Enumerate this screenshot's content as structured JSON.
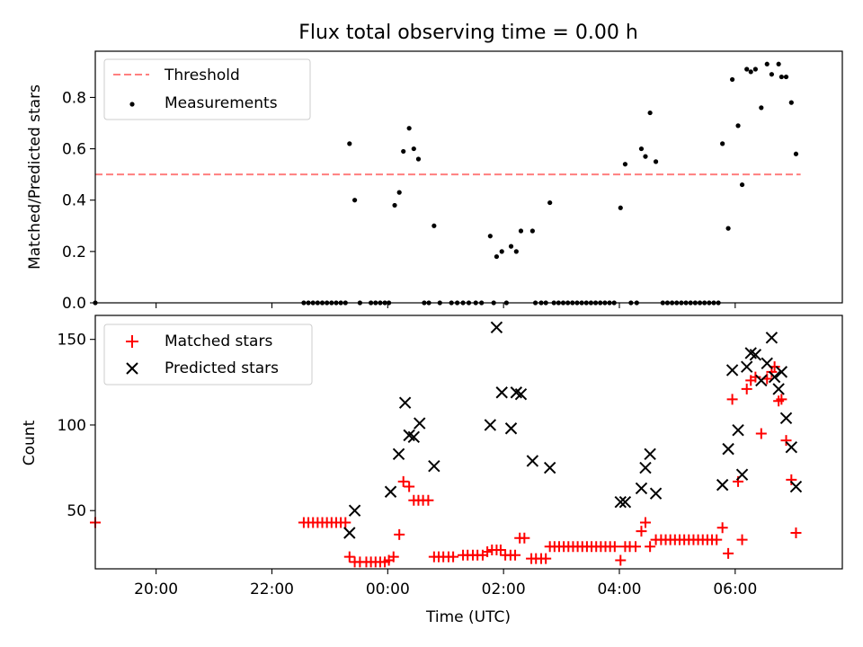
{
  "chart_data": [
    {
      "type": "scatter",
      "title": "Flux total observing time = 0.00 h",
      "xlabel": "",
      "ylabel": "Matched/Predicted stars",
      "xlim": [
        -5.05,
        7.85
      ],
      "ylim": [
        0,
        0.98
      ],
      "x_unit": "hours relative to 00:00 UTC",
      "x_ticks": [
        -4,
        -2,
        0,
        2,
        4,
        6
      ],
      "y_ticks": [
        0.0,
        0.2,
        0.4,
        0.6,
        0.8
      ],
      "y_tick_labels": [
        "0.0",
        "0.2",
        "0.4",
        "0.6",
        "0.8"
      ],
      "legend_position": "top-left",
      "legend": [
        "Threshold",
        "Measurements"
      ],
      "threshold": {
        "name": "Threshold",
        "value": 0.5,
        "x_range": [
          -5.05,
          7.13
        ],
        "color": "#ff7f7f",
        "style": "dashed"
      },
      "series": [
        {
          "name": "Measurements",
          "color": "#000000",
          "marker": "dot",
          "points": [
            [
              -5.05,
              0.0
            ],
            [
              -1.45,
              0.0
            ],
            [
              -1.37,
              0.0
            ],
            [
              -1.29,
              0.0
            ],
            [
              -1.21,
              0.0
            ],
            [
              -1.13,
              0.0
            ],
            [
              -1.05,
              0.0
            ],
            [
              -0.97,
              0.0
            ],
            [
              -0.89,
              0.0
            ],
            [
              -0.81,
              0.0
            ],
            [
              -0.73,
              0.0
            ],
            [
              -0.66,
              0.62
            ],
            [
              -0.57,
              0.4
            ],
            [
              -0.48,
              0.0
            ],
            [
              -0.29,
              0.0
            ],
            [
              -0.21,
              0.0
            ],
            [
              -0.13,
              0.0
            ],
            [
              -0.05,
              0.0
            ],
            [
              0.02,
              0.0
            ],
            [
              0.12,
              0.38
            ],
            [
              0.2,
              0.43
            ],
            [
              0.27,
              0.59
            ],
            [
              0.37,
              0.68
            ],
            [
              0.45,
              0.6
            ],
            [
              0.53,
              0.56
            ],
            [
              0.63,
              0.0
            ],
            [
              0.71,
              0.0
            ],
            [
              0.8,
              0.3
            ],
            [
              0.9,
              0.0
            ],
            [
              1.1,
              0.0
            ],
            [
              1.2,
              0.0
            ],
            [
              1.3,
              0.0
            ],
            [
              1.4,
              0.0
            ],
            [
              1.52,
              0.0
            ],
            [
              1.62,
              0.0
            ],
            [
              1.77,
              0.26
            ],
            [
              1.83,
              0.0
            ],
            [
              1.88,
              0.18
            ],
            [
              1.97,
              0.2
            ],
            [
              2.05,
              0.0
            ],
            [
              2.13,
              0.22
            ],
            [
              2.22,
              0.2
            ],
            [
              2.3,
              0.28
            ],
            [
              2.5,
              0.28
            ],
            [
              2.55,
              0.0
            ],
            [
              2.65,
              0.0
            ],
            [
              2.73,
              0.0
            ],
            [
              2.8,
              0.39
            ],
            [
              2.87,
              0.0
            ],
            [
              2.95,
              0.0
            ],
            [
              3.03,
              0.0
            ],
            [
              3.11,
              0.0
            ],
            [
              3.19,
              0.0
            ],
            [
              3.27,
              0.0
            ],
            [
              3.35,
              0.0
            ],
            [
              3.43,
              0.0
            ],
            [
              3.51,
              0.0
            ],
            [
              3.59,
              0.0
            ],
            [
              3.67,
              0.0
            ],
            [
              3.75,
              0.0
            ],
            [
              3.83,
              0.0
            ],
            [
              3.91,
              0.0
            ],
            [
              4.02,
              0.37
            ],
            [
              4.1,
              0.54
            ],
            [
              4.2,
              0.0
            ],
            [
              4.3,
              0.0
            ],
            [
              4.38,
              0.6
            ],
            [
              4.45,
              0.57
            ],
            [
              4.53,
              0.74
            ],
            [
              4.63,
              0.55
            ],
            [
              4.75,
              0.0
            ],
            [
              4.83,
              0.0
            ],
            [
              4.91,
              0.0
            ],
            [
              4.99,
              0.0
            ],
            [
              5.07,
              0.0
            ],
            [
              5.15,
              0.0
            ],
            [
              5.23,
              0.0
            ],
            [
              5.31,
              0.0
            ],
            [
              5.39,
              0.0
            ],
            [
              5.47,
              0.0
            ],
            [
              5.55,
              0.0
            ],
            [
              5.63,
              0.0
            ],
            [
              5.71,
              0.0
            ],
            [
              5.78,
              0.62
            ],
            [
              5.88,
              0.29
            ],
            [
              5.95,
              0.87
            ],
            [
              6.05,
              0.69
            ],
            [
              6.12,
              0.46
            ],
            [
              6.2,
              0.91
            ],
            [
              6.27,
              0.9
            ],
            [
              6.35,
              0.91
            ],
            [
              6.45,
              0.76
            ],
            [
              6.55,
              0.93
            ],
            [
              6.63,
              0.89
            ],
            [
              6.75,
              0.93
            ],
            [
              6.8,
              0.88
            ],
            [
              6.88,
              0.88
            ],
            [
              6.97,
              0.78
            ],
            [
              7.05,
              0.58
            ]
          ]
        }
      ]
    },
    {
      "type": "scatter",
      "title": "",
      "xlabel": "Time (UTC)",
      "ylabel": "Count",
      "xlim": [
        -5.05,
        7.85
      ],
      "ylim": [
        16,
        164
      ],
      "x_unit": "hours relative to 00:00 UTC",
      "x_ticks": [
        -4,
        -2,
        0,
        2,
        4,
        6
      ],
      "x_tick_labels": [
        "20:00",
        "22:00",
        "00:00",
        "02:00",
        "04:00",
        "06:00"
      ],
      "y_ticks": [
        50,
        100,
        150
      ],
      "y_tick_labels": [
        "50",
        "100",
        "150"
      ],
      "legend_position": "top-left",
      "legend": [
        "Matched stars",
        "Predicted stars"
      ],
      "series": [
        {
          "name": "Matched stars",
          "color": "#ff0000",
          "marker": "plus",
          "points": [
            [
              -5.05,
              43
            ],
            [
              -1.45,
              43
            ],
            [
              -1.37,
              43
            ],
            [
              -1.29,
              43
            ],
            [
              -1.21,
              43
            ],
            [
              -1.13,
              43
            ],
            [
              -1.05,
              43
            ],
            [
              -0.97,
              43
            ],
            [
              -0.89,
              43
            ],
            [
              -0.81,
              43
            ],
            [
              -0.73,
              43
            ],
            [
              -0.66,
              23
            ],
            [
              -0.57,
              20
            ],
            [
              -0.48,
              20
            ],
            [
              -0.37,
              20
            ],
            [
              -0.29,
              20
            ],
            [
              -0.21,
              20
            ],
            [
              -0.13,
              20
            ],
            [
              -0.05,
              20
            ],
            [
              0.02,
              21
            ],
            [
              0.1,
              23
            ],
            [
              0.2,
              36
            ],
            [
              0.27,
              67
            ],
            [
              0.37,
              64
            ],
            [
              0.45,
              56
            ],
            [
              0.53,
              56
            ],
            [
              0.61,
              56
            ],
            [
              0.7,
              56
            ],
            [
              0.8,
              23
            ],
            [
              0.88,
              23
            ],
            [
              0.96,
              23
            ],
            [
              1.05,
              23
            ],
            [
              1.13,
              23
            ],
            [
              1.3,
              24
            ],
            [
              1.38,
              24
            ],
            [
              1.47,
              24
            ],
            [
              1.55,
              24
            ],
            [
              1.64,
              24
            ],
            [
              1.72,
              26
            ],
            [
              1.8,
              27
            ],
            [
              1.88,
              27
            ],
            [
              1.95,
              27
            ],
            [
              2.03,
              24
            ],
            [
              2.12,
              24
            ],
            [
              2.2,
              24
            ],
            [
              2.28,
              34
            ],
            [
              2.36,
              34
            ],
            [
              2.48,
              22
            ],
            [
              2.56,
              22
            ],
            [
              2.65,
              22
            ],
            [
              2.73,
              22
            ],
            [
              2.8,
              29
            ],
            [
              2.88,
              29
            ],
            [
              2.96,
              29
            ],
            [
              3.04,
              29
            ],
            [
              3.12,
              29
            ],
            [
              3.2,
              29
            ],
            [
              3.28,
              29
            ],
            [
              3.36,
              29
            ],
            [
              3.44,
              29
            ],
            [
              3.52,
              29
            ],
            [
              3.6,
              29
            ],
            [
              3.68,
              29
            ],
            [
              3.76,
              29
            ],
            [
              3.84,
              29
            ],
            [
              3.92,
              29
            ],
            [
              4.02,
              21
            ],
            [
              4.1,
              29
            ],
            [
              4.18,
              29
            ],
            [
              4.28,
              29
            ],
            [
              4.38,
              38
            ],
            [
              4.45,
              43
            ],
            [
              4.53,
              29
            ],
            [
              4.63,
              33
            ],
            [
              4.72,
              33
            ],
            [
              4.8,
              33
            ],
            [
              4.88,
              33
            ],
            [
              4.96,
              33
            ],
            [
              5.04,
              33
            ],
            [
              5.12,
              33
            ],
            [
              5.2,
              33
            ],
            [
              5.28,
              33
            ],
            [
              5.36,
              33
            ],
            [
              5.44,
              33
            ],
            [
              5.52,
              33
            ],
            [
              5.6,
              33
            ],
            [
              5.68,
              33
            ],
            [
              5.78,
              40
            ],
            [
              5.88,
              25
            ],
            [
              5.95,
              115
            ],
            [
              6.05,
              67
            ],
            [
              6.12,
              33
            ],
            [
              6.2,
              121
            ],
            [
              6.27,
              126
            ],
            [
              6.35,
              128
            ],
            [
              6.45,
              95
            ],
            [
              6.55,
              127
            ],
            [
              6.63,
              131
            ],
            [
              6.68,
              134
            ],
            [
              6.75,
              114
            ],
            [
              6.8,
              115
            ],
            [
              6.88,
              91
            ],
            [
              6.97,
              68
            ],
            [
              7.05,
              37
            ]
          ]
        },
        {
          "name": "Predicted stars",
          "color": "#000000",
          "marker": "x",
          "points": [
            [
              -0.66,
              37
            ],
            [
              -0.57,
              50
            ],
            [
              0.05,
              61
            ],
            [
              0.19,
              83
            ],
            [
              0.3,
              113
            ],
            [
              0.37,
              94
            ],
            [
              0.45,
              93
            ],
            [
              0.55,
              101
            ],
            [
              0.8,
              76
            ],
            [
              1.77,
              100
            ],
            [
              1.88,
              157
            ],
            [
              1.97,
              119
            ],
            [
              2.13,
              98
            ],
            [
              2.22,
              119
            ],
            [
              2.3,
              118
            ],
            [
              2.5,
              79
            ],
            [
              2.8,
              75
            ],
            [
              4.02,
              55
            ],
            [
              4.1,
              55
            ],
            [
              4.38,
              63
            ],
            [
              4.45,
              75
            ],
            [
              4.53,
              83
            ],
            [
              4.63,
              60
            ],
            [
              5.78,
              65
            ],
            [
              5.88,
              86
            ],
            [
              5.95,
              132
            ],
            [
              6.05,
              97
            ],
            [
              6.12,
              71
            ],
            [
              6.2,
              134
            ],
            [
              6.27,
              142
            ],
            [
              6.35,
              141
            ],
            [
              6.45,
              126
            ],
            [
              6.55,
              136
            ],
            [
              6.63,
              151
            ],
            [
              6.68,
              128
            ],
            [
              6.75,
              121
            ],
            [
              6.8,
              131
            ],
            [
              6.88,
              104
            ],
            [
              6.97,
              87
            ],
            [
              7.05,
              64
            ]
          ]
        }
      ]
    }
  ]
}
